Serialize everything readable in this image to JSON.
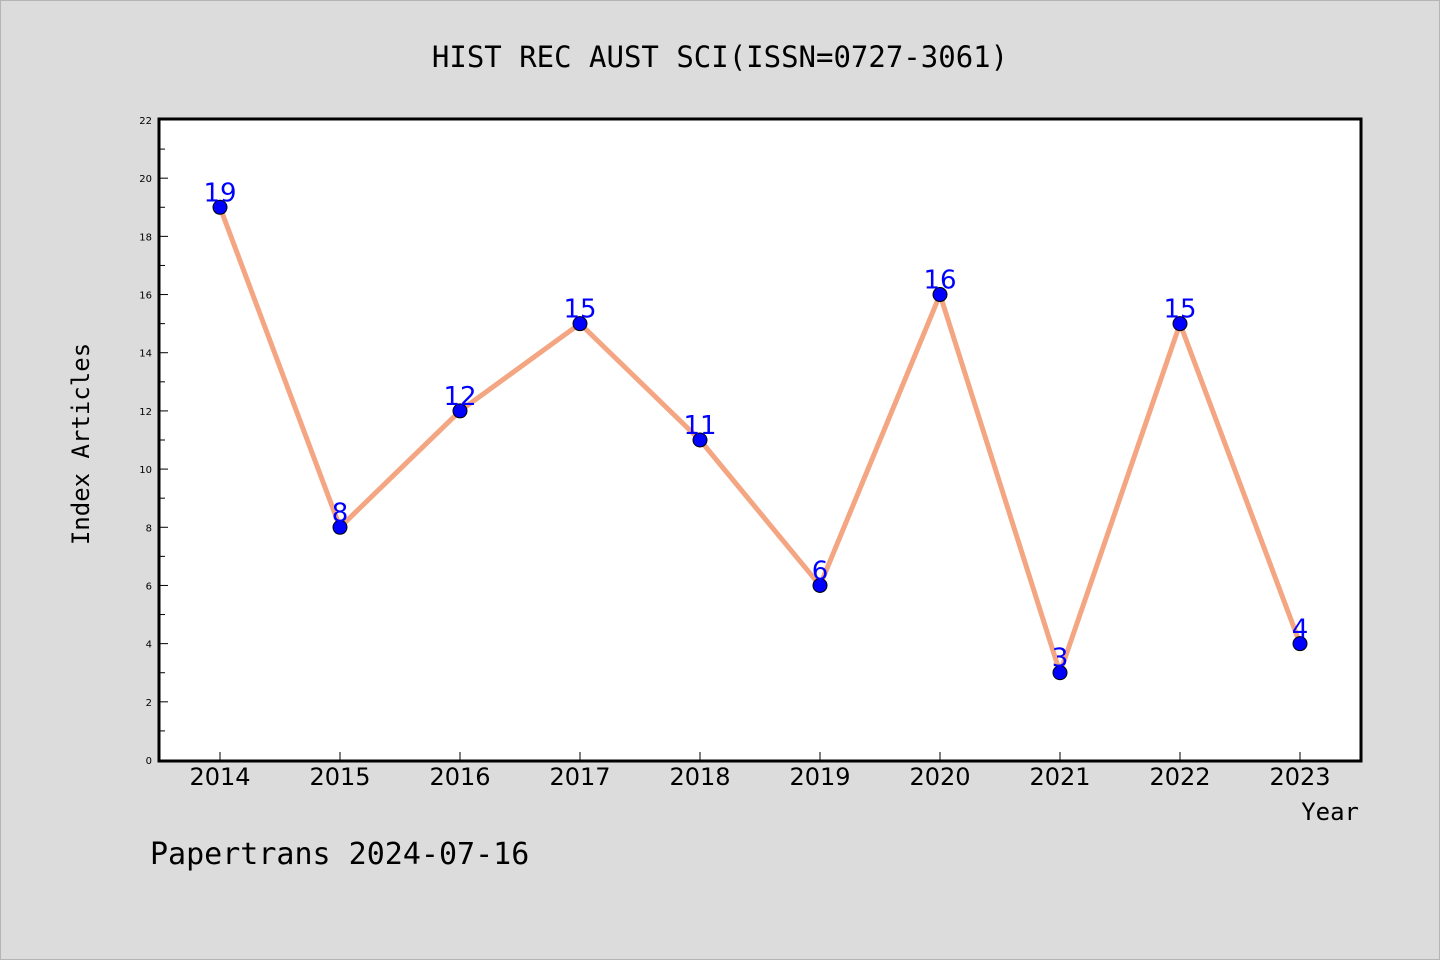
{
  "chart_data": {
    "type": "line",
    "title": "HIST REC AUST SCI(ISSN=0727-3061)",
    "xlabel": "Year",
    "ylabel": "Index Articles",
    "x": [
      "2014",
      "2015",
      "2016",
      "2017",
      "2018",
      "2019",
      "2020",
      "2021",
      "2022",
      "2023"
    ],
    "series": [
      {
        "values": [
          19,
          8,
          12,
          15,
          11,
          6,
          16,
          3,
          15,
          4
        ]
      }
    ],
    "ylim": [
      0,
      22
    ],
    "yticks": [
      "0",
      "2",
      "4",
      "6",
      "8",
      "10",
      "12",
      "14",
      "16",
      "18",
      "20",
      "22"
    ],
    "grid": false,
    "colors": {
      "line": "#f4a582",
      "marker": "#0000ff",
      "label": "#0000ff"
    }
  },
  "footer": {
    "text": "Papertrans 2024-07-16"
  }
}
